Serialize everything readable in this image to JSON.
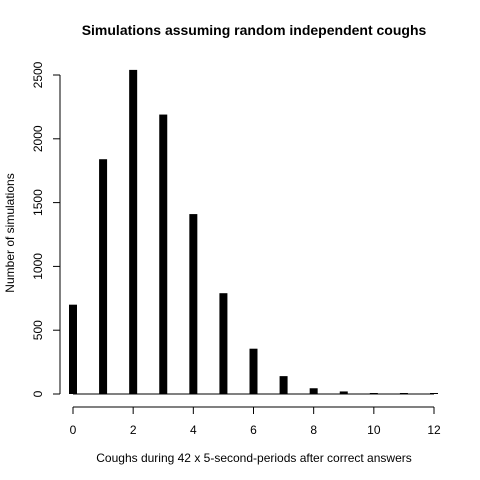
{
  "chart_data": {
    "type": "bar",
    "title": "Simulations assuming random independent coughs",
    "xlabel": "Coughs during 42 x 5-second-periods after correct answers",
    "ylabel": "Number of simulations",
    "x": [
      0,
      1,
      2,
      3,
      4,
      5,
      6,
      7,
      8,
      9,
      10,
      11,
      12
    ],
    "values": [
      700,
      1840,
      2540,
      2190,
      1410,
      790,
      355,
      140,
      45,
      20,
      5,
      2,
      1
    ],
    "xlim": [
      0,
      12
    ],
    "ylim": [
      0,
      2600
    ],
    "xticks": [
      0,
      2,
      4,
      6,
      8,
      10,
      12
    ],
    "yticks": [
      0,
      500,
      1000,
      1500,
      2000,
      2500
    ],
    "grid": false,
    "bar_color": "#000000"
  }
}
